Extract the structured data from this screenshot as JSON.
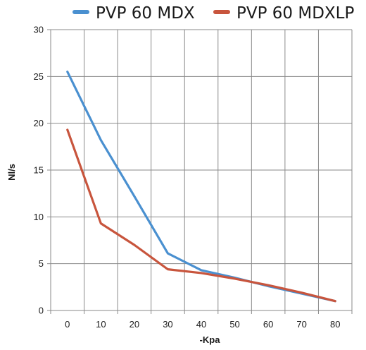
{
  "chart_data": {
    "type": "line",
    "title": "",
    "xlabel": "-Kpa",
    "ylabel": "Nl/s",
    "x": [
      0,
      10,
      20,
      30,
      40,
      50,
      60,
      70,
      80
    ],
    "xlim": [
      -5,
      85
    ],
    "ylim": [
      0,
      30
    ],
    "xticks": [
      "0",
      "10",
      "20",
      "30",
      "40",
      "50",
      "60",
      "70",
      "80"
    ],
    "yticks": [
      "0",
      "5",
      "10",
      "15",
      "20",
      "25",
      "30"
    ],
    "grid": true,
    "legend_position": "top",
    "series": [
      {
        "name": "PVP 60 MDX",
        "color": "#4A90D0",
        "values": [
          25.5,
          18.2,
          12.2,
          6.1,
          4.3,
          3.5,
          2.6,
          1.8,
          1.0
        ]
      },
      {
        "name": "PVP 60 MDXLP",
        "color": "#C8553D",
        "values": [
          19.3,
          9.3,
          7.0,
          4.4,
          4.0,
          3.4,
          2.7,
          1.9,
          1.0
        ]
      }
    ]
  }
}
